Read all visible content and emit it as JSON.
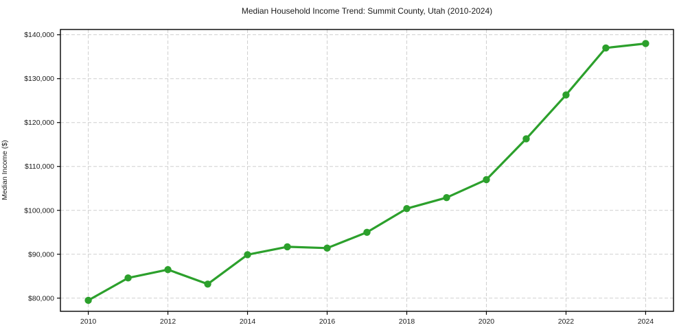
{
  "chart_data": {
    "type": "line",
    "title": "Median Household Income Trend: Summit County, Utah (2010-2024)",
    "xlabel": "",
    "ylabel": "Median Income ($)",
    "x": [
      2010,
      2011,
      2012,
      2013,
      2014,
      2015,
      2016,
      2017,
      2018,
      2019,
      2020,
      2021,
      2022,
      2023,
      2024
    ],
    "values": [
      79500,
      84600,
      86500,
      83200,
      89900,
      91700,
      91400,
      95000,
      100400,
      102900,
      107000,
      116300,
      126300,
      137000,
      138000
    ],
    "xlim": [
      2009.3,
      2024.7
    ],
    "ylim": [
      77000,
      141200
    ],
    "xticks": [
      2010,
      2012,
      2014,
      2016,
      2018,
      2020,
      2022,
      2024
    ],
    "yticks": [
      80000,
      90000,
      100000,
      110000,
      120000,
      130000,
      140000
    ],
    "y_tick_prefix": "$",
    "grid": "both-dashed",
    "legend": "none",
    "line_color": "#2ca02c",
    "marker": "circle",
    "marker_radius": 5.2,
    "background_color": "#ffffff",
    "grid_color": "#cfcfcf",
    "text_color": "#1a1a1a"
  }
}
